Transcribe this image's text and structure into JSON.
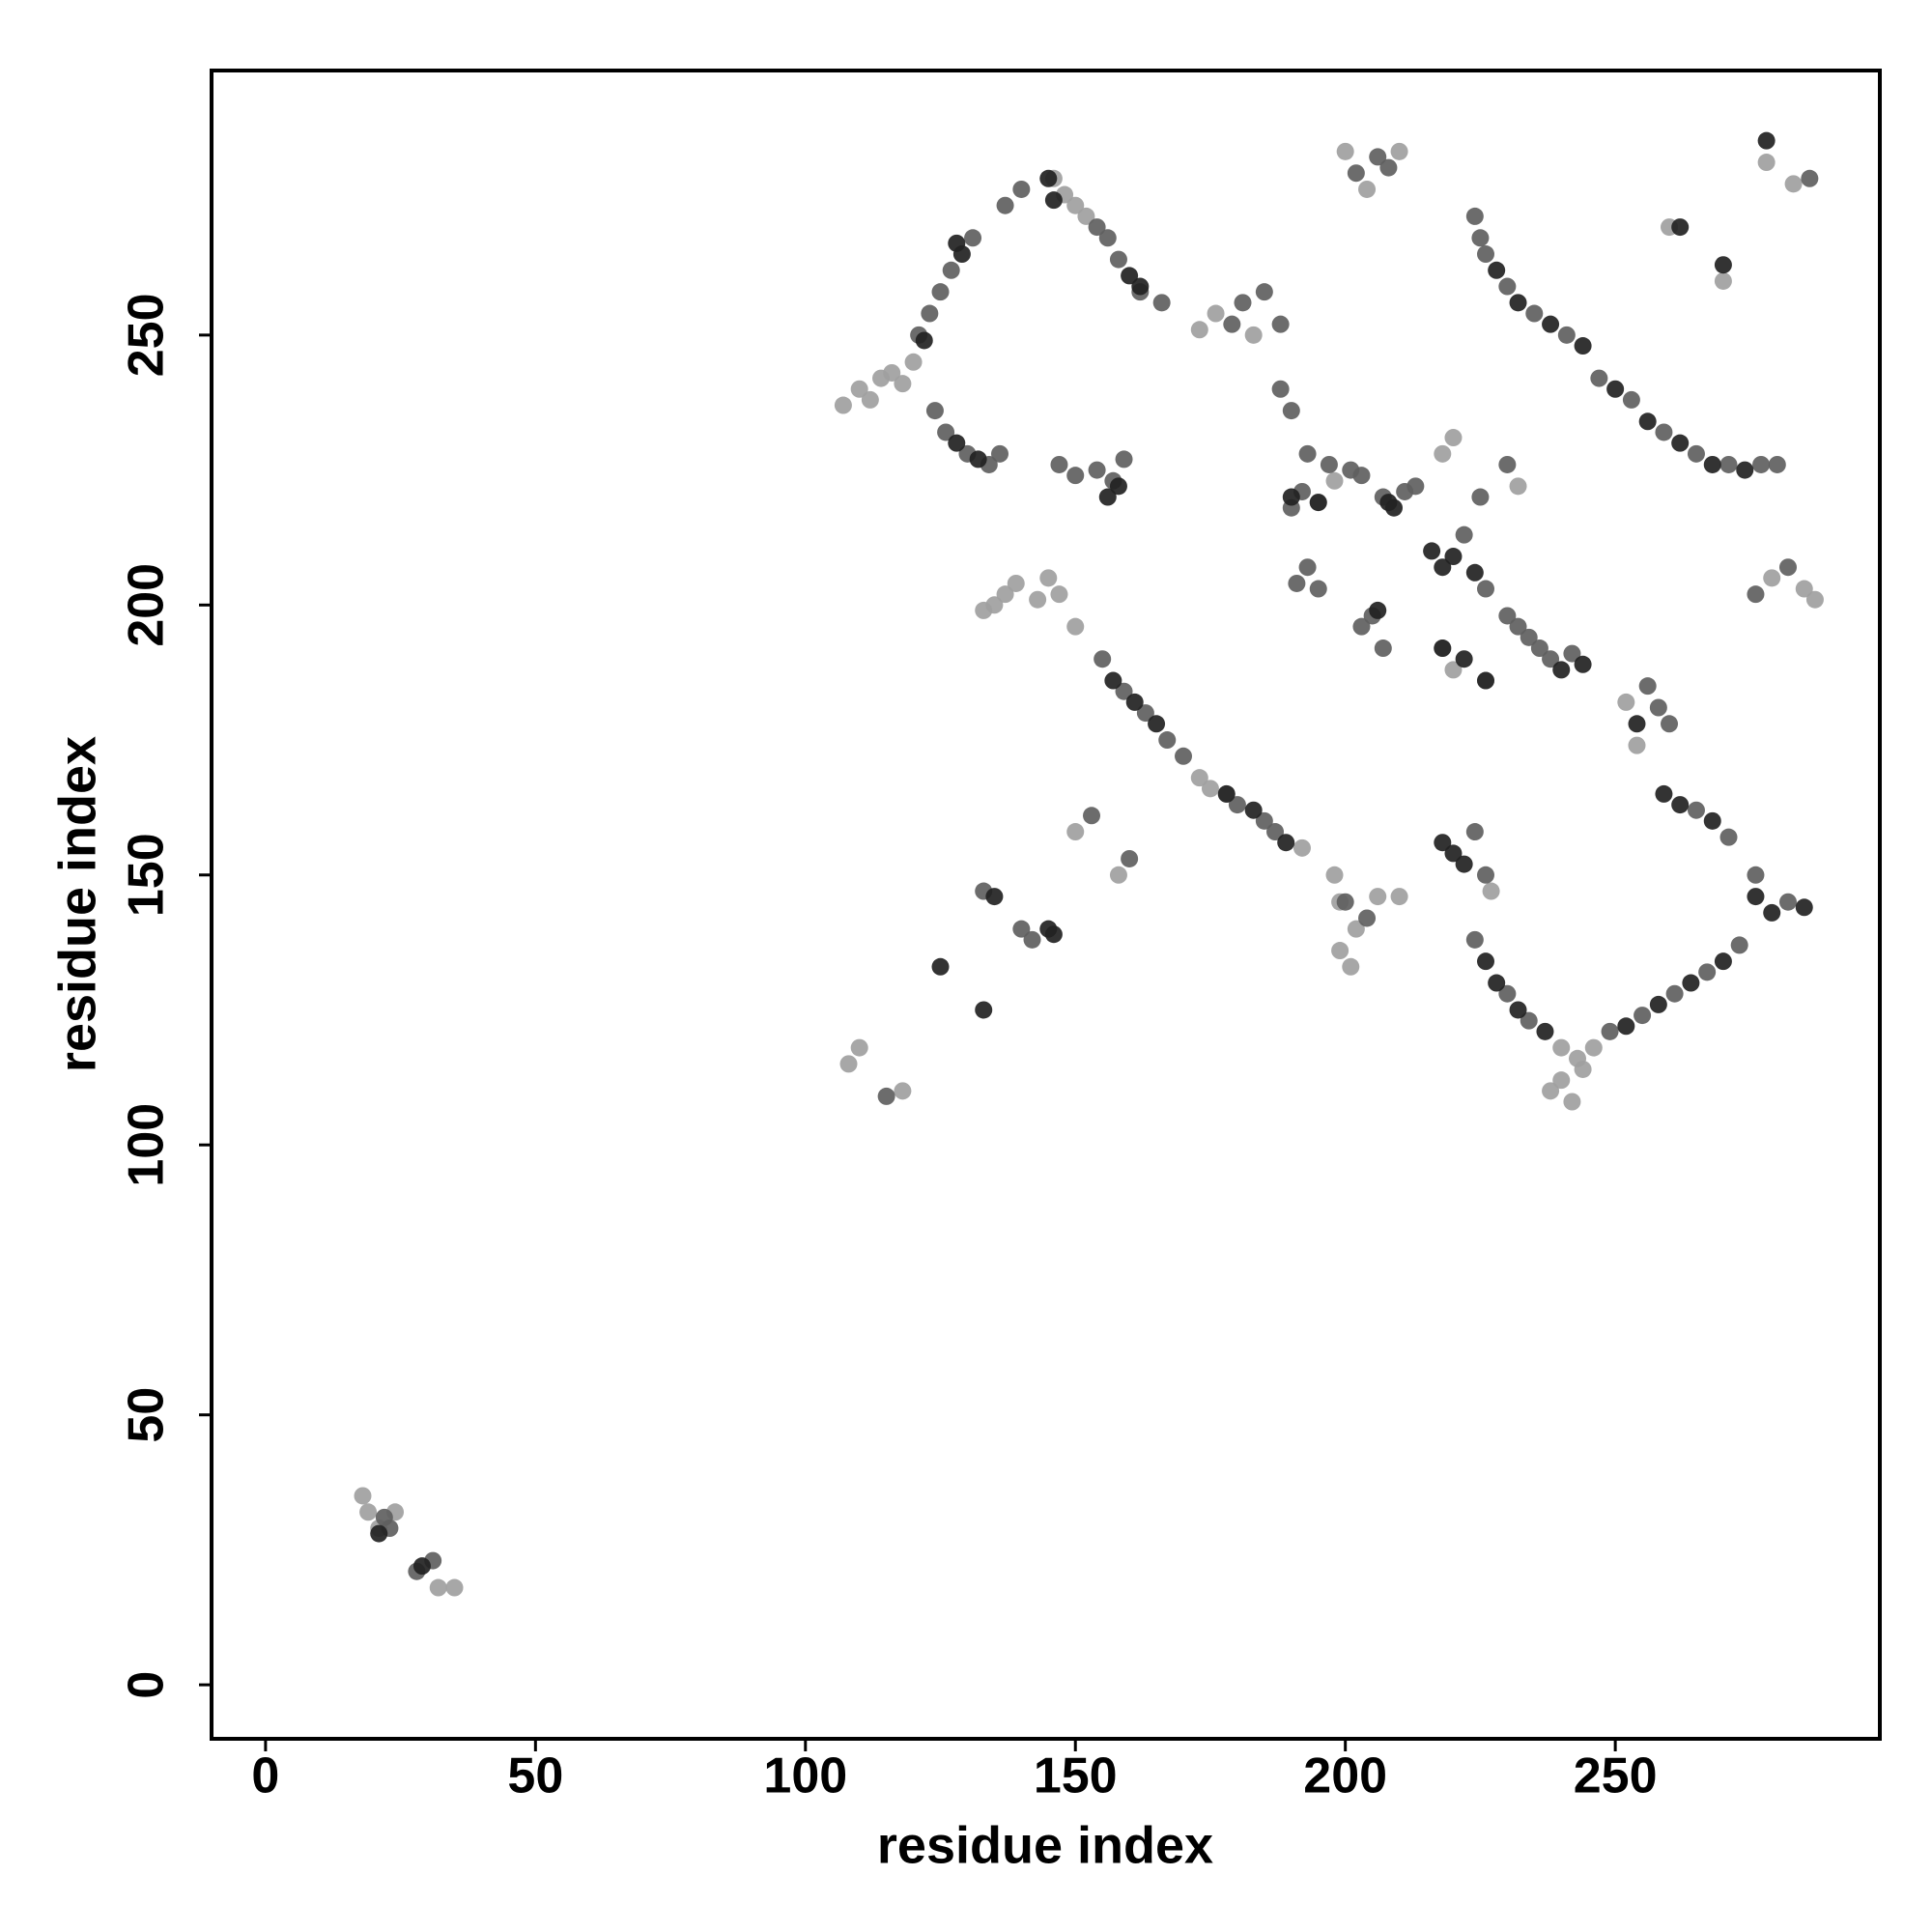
{
  "chart_data": {
    "type": "scatter",
    "x_label": "residue index",
    "y_label": "residue index",
    "xlim": [
      -10,
      299
    ],
    "ylim": [
      -10,
      299
    ],
    "xticks": [
      0,
      50,
      100,
      150,
      200,
      250
    ],
    "yticks": [
      0,
      50,
      100,
      150,
      200,
      250
    ],
    "grid": false,
    "series": [
      {
        "color": "#a0a0a0",
        "x": [
          18,
          19,
          21,
          24,
          32,
          35,
          107,
          110,
          112,
          114,
          116,
          118,
          120,
          146,
          148,
          150,
          152,
          200,
          204,
          210,
          173,
          176,
          183,
          195,
          198,
          199,
          201,
          260,
          278,
          283,
          218,
          220,
          226,
          238,
          240,
          242,
          244,
          252,
          254,
          143,
          145,
          147,
          150,
          133,
          135,
          137,
          139,
          173,
          175,
          178,
          192,
          198,
          199,
          202,
          206,
          210,
          227,
          240,
          243,
          246,
          279,
          285,
          287,
          108,
          110,
          118,
          150,
          158,
          218,
          220,
          232,
          270
        ],
        "values": [
          35,
          32,
          29,
          32,
          18,
          18,
          237,
          240,
          238,
          242,
          243,
          241,
          245,
          279,
          276,
          274,
          272,
          284,
          277,
          284,
          251,
          254,
          250,
          219,
          223,
          136,
          133,
          270,
          282,
          278,
          192,
          188,
          186,
          110,
          112,
          108,
          114,
          182,
          174,
          201,
          205,
          202,
          196,
          199,
          200,
          202,
          204,
          168,
          166,
          165,
          155,
          150,
          145,
          140,
          146,
          146,
          147,
          118,
          116,
          118,
          205,
          203,
          201,
          115,
          118,
          110,
          158,
          150,
          228,
          231,
          222,
          260
        ]
      },
      {
        "color": "#606060",
        "x": [
          22,
          23,
          28,
          31,
          121,
          123,
          125,
          127,
          131,
          137,
          140,
          124,
          126,
          130,
          134,
          136,
          154,
          156,
          158,
          162,
          166,
          147,
          150,
          154,
          157,
          159,
          202,
          206,
          208,
          179,
          181,
          185,
          188,
          188,
          190,
          193,
          197,
          201,
          203,
          207,
          211,
          213,
          190,
          192,
          224,
          225,
          226,
          230,
          235,
          241,
          247,
          253,
          259,
          265,
          271,
          277,
          280,
          286,
          222,
          226,
          230,
          234,
          238,
          242,
          232,
          236,
          256,
          258,
          260,
          155,
          159,
          163,
          167,
          170,
          180,
          185,
          187,
          191,
          193,
          195,
          203,
          205,
          207,
          200,
          204,
          224,
          226,
          224,
          230,
          234,
          249,
          255,
          261,
          267,
          273,
          276,
          271,
          265,
          282,
          276,
          282,
          133,
          140,
          142,
          115,
          153,
          160,
          225,
          230
        ],
        "values": [
          31,
          29,
          21,
          23,
          250,
          254,
          258,
          262,
          268,
          274,
          277,
          236,
          232,
          228,
          226,
          228,
          270,
          268,
          264,
          258,
          256,
          226,
          224,
          225,
          223,
          227,
          280,
          283,
          281,
          252,
          256,
          258,
          252,
          240,
          236,
          228,
          226,
          225,
          224,
          220,
          221,
          222,
          218,
          221,
          272,
          268,
          265,
          259,
          254,
          250,
          242,
          238,
          232,
          228,
          226,
          226,
          226,
          279,
          213,
          203,
          198,
          194,
          190,
          191,
          196,
          192,
          185,
          181,
          178,
          190,
          184,
          180,
          175,
          172,
          163,
          160,
          158,
          204,
          207,
          203,
          196,
          198,
          192,
          145,
          142,
          158,
          150,
          138,
          128,
          123,
          121,
          124,
          128,
          132,
          137,
          150,
          157,
          162,
          207,
          202,
          145,
          147,
          140,
          138,
          109,
          161,
          153,
          220,
          226
        ]
      },
      {
        "color": "#222222",
        "x": [
          21,
          29,
          122,
          129,
          128,
          145,
          146,
          160,
          162,
          128,
          132,
          156,
          158,
          209,
          208,
          195,
          190,
          228,
          232,
          238,
          244,
          250,
          256,
          262,
          268,
          274,
          270,
          278,
          262,
          216,
          218,
          220,
          224,
          218,
          222,
          226,
          240,
          244,
          254,
          157,
          161,
          165,
          178,
          183,
          189,
          206,
          218,
          220,
          222,
          226,
          228,
          232,
          237,
          252,
          258,
          264,
          270,
          279,
          285,
          268,
          262,
          259,
          276,
          145,
          146,
          135,
          125,
          133
        ],
        "values": [
          28,
          22,
          249,
          265,
          267,
          279,
          275,
          261,
          259,
          230,
          227,
          220,
          222,
          218,
          219,
          219,
          220,
          262,
          256,
          252,
          248,
          240,
          234,
          230,
          226,
          225,
          263,
          286,
          270,
          210,
          207,
          209,
          206,
          192,
          190,
          186,
          188,
          189,
          178,
          186,
          182,
          178,
          165,
          162,
          156,
          199,
          156,
          154,
          152,
          134,
          130,
          125,
          121,
          122,
          126,
          130,
          134,
          143,
          144,
          160,
          163,
          165,
          146,
          140,
          139,
          146,
          133,
          125
        ]
      }
    ]
  }
}
